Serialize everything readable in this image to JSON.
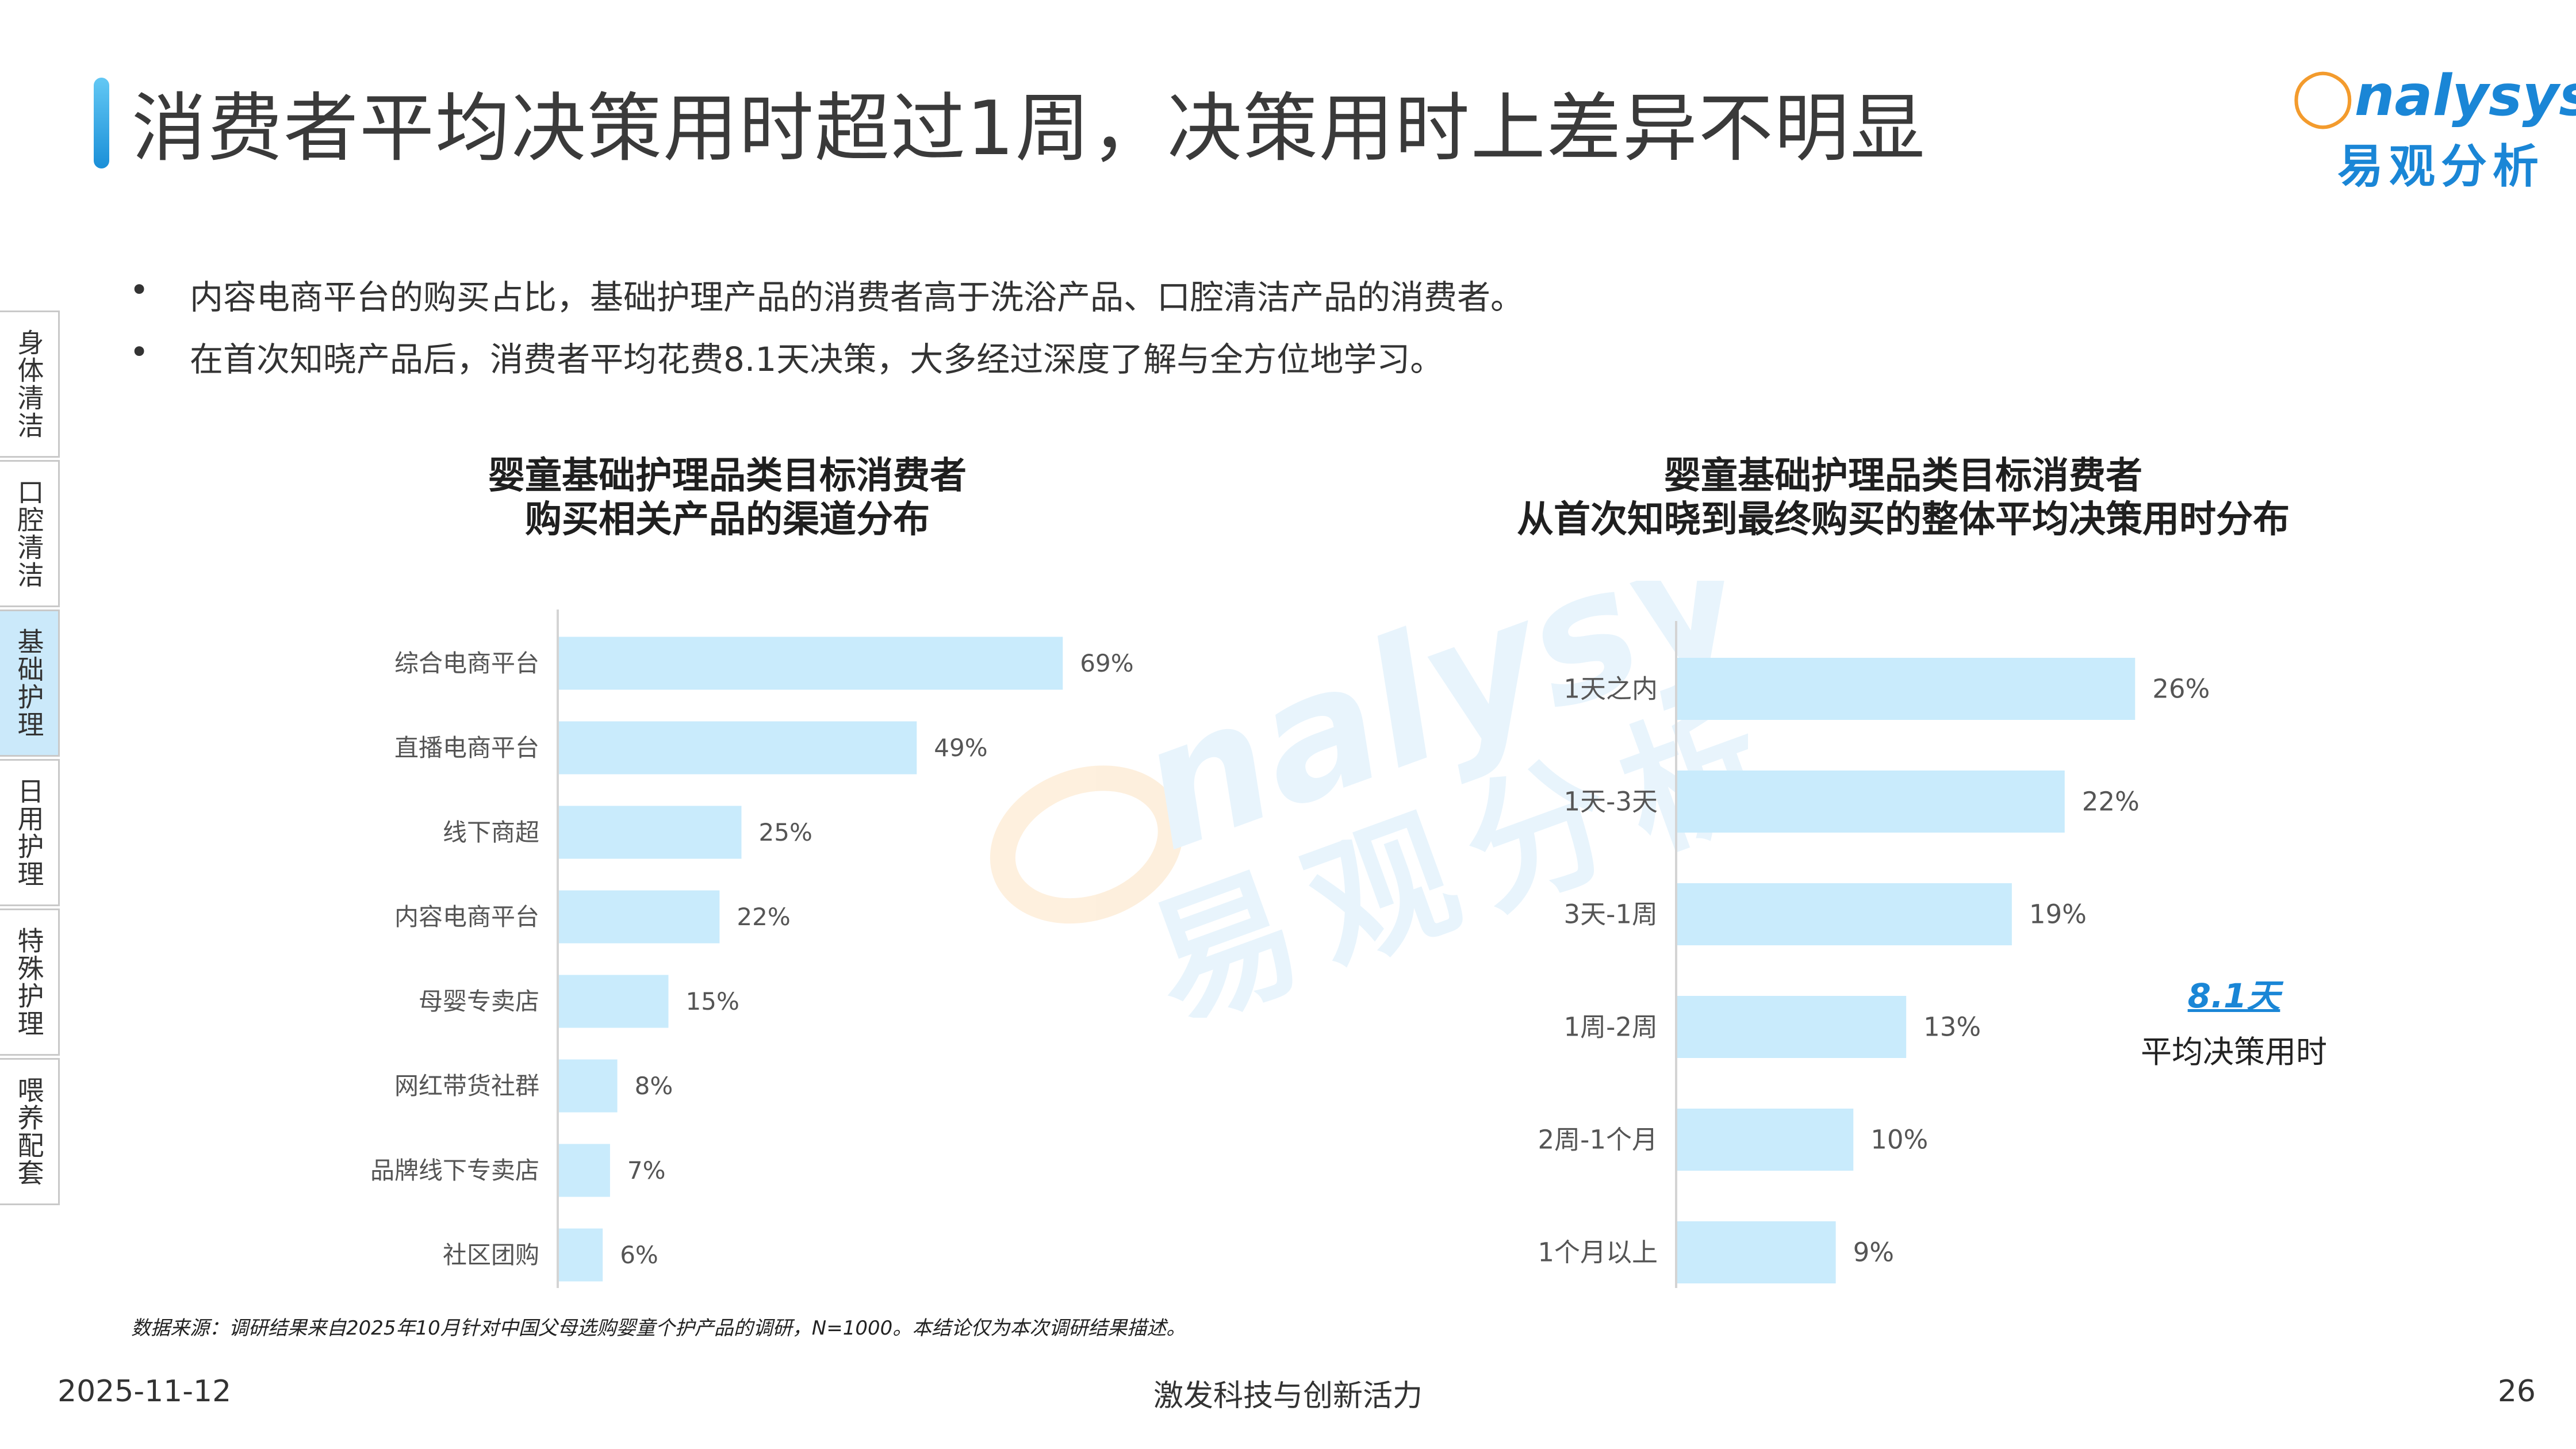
{
  "header": {
    "title": "消费者平均决策用时超过1周，决策用时上差异不明显",
    "logo_en": "Analysys",
    "logo_cn": "易观分析"
  },
  "bullets": [
    "内容电商平台的购买占比，基础护理产品的消费者高于洗浴产品、口腔清洁产品的消费者。",
    "在首次知晓产品后，消费者平均花费8.1天决策，大多经过深度了解与全方位地学习。"
  ],
  "sidenav": {
    "items": [
      {
        "label": "身体清洁",
        "active": false
      },
      {
        "label": "口腔清洁",
        "active": false
      },
      {
        "label": "基础护理",
        "active": true
      },
      {
        "label": "日用护理",
        "active": false
      },
      {
        "label": "特殊护理",
        "active": false
      },
      {
        "label": "喂养配套",
        "active": false
      }
    ]
  },
  "charts": {
    "left_title_1": "婴童基础护理品类目标消费者",
    "left_title_2": "购买相关产品的渠道分布",
    "right_title_1": "婴童基础护理品类目标消费者",
    "right_title_2": "从首次知晓到最终购买的整体平均决策用时分布"
  },
  "chart_data": [
    {
      "type": "bar",
      "orientation": "horizontal",
      "title": "婴童基础护理品类目标消费者 购买相关产品的渠道分布",
      "categories": [
        "综合电商平台",
        "直播电商平台",
        "线下商超",
        "内容电商平台",
        "母婴专卖店",
        "网红带货社群",
        "品牌线下专卖店",
        "社区团购"
      ],
      "values": [
        69,
        49,
        25,
        22,
        15,
        8,
        7,
        6
      ],
      "value_labels": [
        "69%",
        "49%",
        "25%",
        "22%",
        "15%",
        "8%",
        "7%",
        "6%"
      ],
      "unit": "%",
      "xlim": [
        0,
        100
      ],
      "bar_color": "#c9ebfc",
      "grid": false
    },
    {
      "type": "bar",
      "orientation": "horizontal",
      "title": "婴童基础护理品类目标消费者 从首次知晓到最终购买的整体平均决策用时分布",
      "categories": [
        "1天之内",
        "1天-3天",
        "3天-1周",
        "1周-2周",
        "2周-1个月",
        "1个月以上"
      ],
      "values": [
        26,
        22,
        19,
        13,
        10,
        9
      ],
      "value_labels": [
        "26%",
        "22%",
        "19%",
        "13%",
        "10%",
        "9%"
      ],
      "unit": "%",
      "xlim": [
        0,
        40
      ],
      "bar_color": "#c9ebfc",
      "grid": false
    }
  ],
  "annotation": {
    "avg_value": "8.1天",
    "avg_label": "平均决策用时",
    "accent_color": "#1a86d6"
  },
  "source_note": "数据来源：调研结果来自2025年10月针对中国父母选购婴童个护产品的调研，N=1000。本结论仅为本次调研结果描述。",
  "footer": {
    "date": "2025-11-12",
    "slogan": "激发科技与创新活力",
    "page": "26"
  },
  "watermark": {
    "en": "nalysys",
    "cn": "易观分析"
  }
}
